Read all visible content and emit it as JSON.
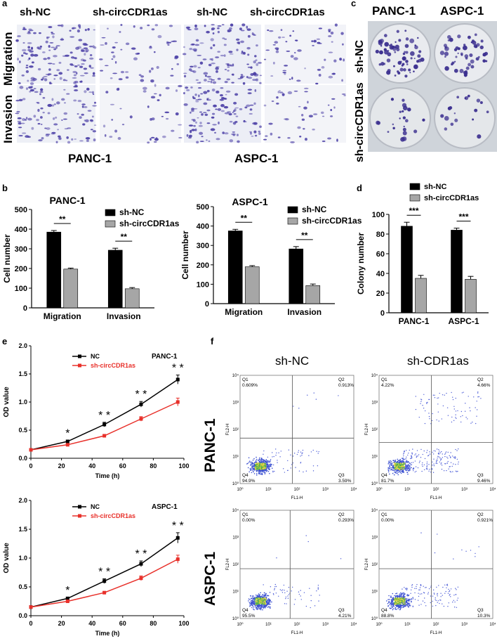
{
  "panel_letters": {
    "a": "a",
    "b": "b",
    "c": "c",
    "d": "d",
    "e": "e",
    "f": "f"
  },
  "panel_a": {
    "column_headers": [
      "sh-NC",
      "sh-circCDR1as",
      "sh-NC",
      "sh-circCDR1as"
    ],
    "row_labels": [
      "Migration",
      "Invasion"
    ],
    "cell_lines": [
      "PANC-1",
      "ASPC-1"
    ],
    "stain_color": "#4b3fa6"
  },
  "panel_c": {
    "column_headers": [
      "PANC-1",
      "ASPC-1"
    ],
    "row_labels": [
      "sh-NC",
      "sh-circCDR1as"
    ]
  },
  "panel_f": {
    "column_headers": [
      "sh-NC",
      "sh-CDR1as"
    ],
    "row_labels": [
      "PANC-1",
      "ASPC-1"
    ],
    "axis_x": "FL1-H",
    "axis_y": "FL2-H",
    "tick_labels": [
      "10⁰",
      "10¹",
      "10²",
      "10³",
      "10⁴"
    ],
    "plots": [
      {
        "q1": "Q1",
        "q1_val": "0.609%",
        "q2": "Q2",
        "q2_val": "0.913%",
        "q3": "Q3",
        "q3_val": "3.59%",
        "q4": "Q4",
        "q4_val": "94.9%"
      },
      {
        "q1": "Q1",
        "q1_val": "4.22%",
        "q2": "Q2",
        "q2_val": "4.66%",
        "q3": "Q3",
        "q3_val": "9.46%",
        "q4": "Q4",
        "q4_val": "81.7%"
      },
      {
        "q1": "Q1",
        "q1_val": "0.00%",
        "q2": "Q2",
        "q2_val": "0.293%",
        "q3": "Q3",
        "q3_val": "4.21%",
        "q4": "Q4",
        "q4_val": "95.5%"
      },
      {
        "q1": "Q1",
        "q1_val": "0.00%",
        "q2": "Q2",
        "q2_val": "0.921%",
        "q3": "Q3",
        "q3_val": "10.3%",
        "q4": "Q4",
        "q4_val": "88.8%"
      }
    ]
  },
  "chart_data": [
    {
      "type": "bar",
      "title": "PANC-1",
      "ylabel": "Cell number",
      "ylim": [
        0,
        500
      ],
      "yticks": [
        "0",
        "100",
        "200",
        "300",
        "400",
        "500"
      ],
      "categories": [
        "Migration",
        "Invasion"
      ],
      "series": [
        {
          "name": "sh-NC",
          "color": "#000000",
          "values": [
            385,
            293
          ],
          "errors": [
            8,
            10
          ]
        },
        {
          "name": "sh-circCDR1as",
          "color": "#a6a6a6",
          "values": [
            197,
            97
          ],
          "errors": [
            5,
            6
          ]
        }
      ],
      "significance": [
        "**",
        "**"
      ],
      "legend": "top-right"
    },
    {
      "type": "bar",
      "title": "ASPC-1",
      "ylabel": "Cell number",
      "ylim": [
        0,
        500
      ],
      "yticks": [
        "0",
        "100",
        "200",
        "300",
        "400",
        "500"
      ],
      "categories": [
        "Migration",
        "Invasion"
      ],
      "series": [
        {
          "name": "sh-NC",
          "color": "#000000",
          "values": [
            375,
            282
          ],
          "errors": [
            8,
            12
          ]
        },
        {
          "name": "sh-circCDR1as",
          "color": "#a6a6a6",
          "values": [
            190,
            93
          ],
          "errors": [
            6,
            8
          ]
        }
      ],
      "significance": [
        "**",
        "**"
      ],
      "legend": "top-right"
    },
    {
      "type": "bar",
      "title": "",
      "ylabel": "Colony number",
      "ylim": [
        0,
        100
      ],
      "yticks": [
        "0",
        "20",
        "40",
        "60",
        "80",
        "100"
      ],
      "categories": [
        "PANC-1",
        "ASPC-1"
      ],
      "series": [
        {
          "name": "sh-NC",
          "color": "#000000",
          "values": [
            88,
            84
          ],
          "errors": [
            4,
            2
          ]
        },
        {
          "name": "sh-circCDR1as",
          "color": "#a6a6a6",
          "values": [
            35,
            34
          ],
          "errors": [
            3,
            3
          ]
        }
      ],
      "significance": [
        "***",
        "***"
      ],
      "legend": "top-left"
    },
    {
      "type": "line",
      "title": "PANC-1",
      "xlabel": "Time (h)",
      "ylabel": "OD value",
      "xlim": [
        0,
        100
      ],
      "ylim": [
        0,
        2.0
      ],
      "xticks": [
        "0",
        "20",
        "40",
        "60",
        "80",
        "100"
      ],
      "yticks": [
        "0.0",
        "0.5",
        "1.0",
        "1.5",
        "2.0"
      ],
      "x": [
        0,
        24,
        48,
        72,
        96
      ],
      "series": [
        {
          "name": "NC",
          "color": "#000000",
          "values": [
            0.15,
            0.3,
            0.6,
            0.96,
            1.4
          ],
          "errors": [
            0.01,
            0.02,
            0.04,
            0.05,
            0.08
          ]
        },
        {
          "name": "sh-circCDR1as",
          "color": "#e8302a",
          "values": [
            0.15,
            0.24,
            0.4,
            0.7,
            1.0
          ],
          "errors": [
            0.01,
            0.02,
            0.02,
            0.04,
            0.07
          ]
        }
      ],
      "significance": [
        "",
        "*",
        "* *",
        "* *",
        "* *"
      ],
      "legend": "top-left"
    },
    {
      "type": "line",
      "title": "ASPC-1",
      "xlabel": "Time (h)",
      "ylabel": "OD value",
      "xlim": [
        0,
        100
      ],
      "ylim": [
        0,
        2.0
      ],
      "xticks": [
        "0",
        "20",
        "40",
        "60",
        "80",
        "100"
      ],
      "yticks": [
        "0.0",
        "0.5",
        "1.0",
        "1.5",
        "2.0"
      ],
      "x": [
        0,
        24,
        48,
        72,
        96
      ],
      "series": [
        {
          "name": "NC",
          "color": "#000000",
          "values": [
            0.15,
            0.3,
            0.6,
            0.9,
            1.35
          ],
          "errors": [
            0.01,
            0.02,
            0.04,
            0.05,
            0.09
          ]
        },
        {
          "name": "sh-circCDR1as",
          "color": "#e8302a",
          "values": [
            0.15,
            0.25,
            0.4,
            0.65,
            0.98
          ],
          "errors": [
            0.01,
            0.02,
            0.02,
            0.04,
            0.07
          ]
        }
      ],
      "significance": [
        "",
        "*",
        "* *",
        "* *",
        "* *"
      ],
      "legend": "top-left"
    }
  ]
}
